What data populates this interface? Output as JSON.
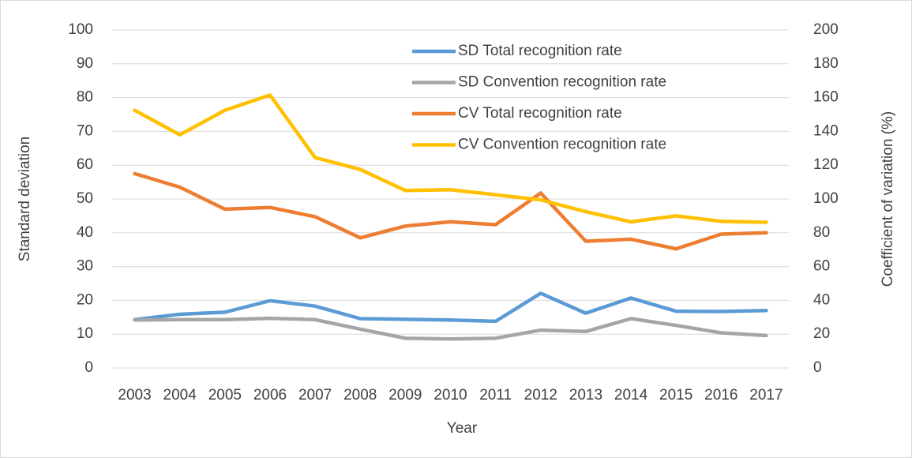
{
  "chart_data": {
    "type": "line",
    "x_label": "Year",
    "y_label": "Standard deviation",
    "y2_label": "Coefficient of variation (%)",
    "categories": [
      "2003",
      "2004",
      "2005",
      "2006",
      "2007",
      "2008",
      "2009",
      "2010",
      "2011",
      "2012",
      "2013",
      "2014",
      "2015",
      "2016",
      "2017"
    ],
    "ylim": [
      0,
      100
    ],
    "yticks": [
      0,
      10,
      20,
      30,
      40,
      50,
      60,
      70,
      80,
      90,
      100
    ],
    "y2lim": [
      0,
      200
    ],
    "y2ticks": [
      0,
      20,
      40,
      60,
      80,
      100,
      120,
      140,
      160,
      180,
      200
    ],
    "grid": true,
    "legend_position": "upper center",
    "series": [
      {
        "name": "SD Total recognition rate",
        "color": "#5b9bd5",
        "values": [
          14.3,
          15.9,
          16.5,
          19.9,
          18.3,
          14.6,
          14.4,
          14.2,
          13.8,
          22.1,
          16.2,
          20.7,
          16.8,
          16.7,
          17.0
        ]
      },
      {
        "name": "SD Convention recognition rate",
        "color": "#a5a5a5",
        "values": [
          14.2,
          14.3,
          14.3,
          14.7,
          14.3,
          11.5,
          8.8,
          8.6,
          8.8,
          11.2,
          10.8,
          14.6,
          12.6,
          10.4,
          9.6
        ]
      },
      {
        "name": "CV Total recognition rate",
        "color": "#ed7d31",
        "axis": "y2",
        "values": [
          115,
          107,
          94,
          95,
          89.5,
          77,
          84,
          86.5,
          84.8,
          103.5,
          75,
          76.2,
          70.5,
          79.2,
          80
        ]
      },
      {
        "name": "CV Convention recognition rate",
        "color": "#ffc000",
        "axis": "y2",
        "values": [
          152.5,
          138,
          152.5,
          161.5,
          124.5,
          117.5,
          105,
          105.5,
          102.5,
          99.5,
          92.5,
          86.5,
          90,
          86.8,
          86.2
        ]
      }
    ]
  }
}
